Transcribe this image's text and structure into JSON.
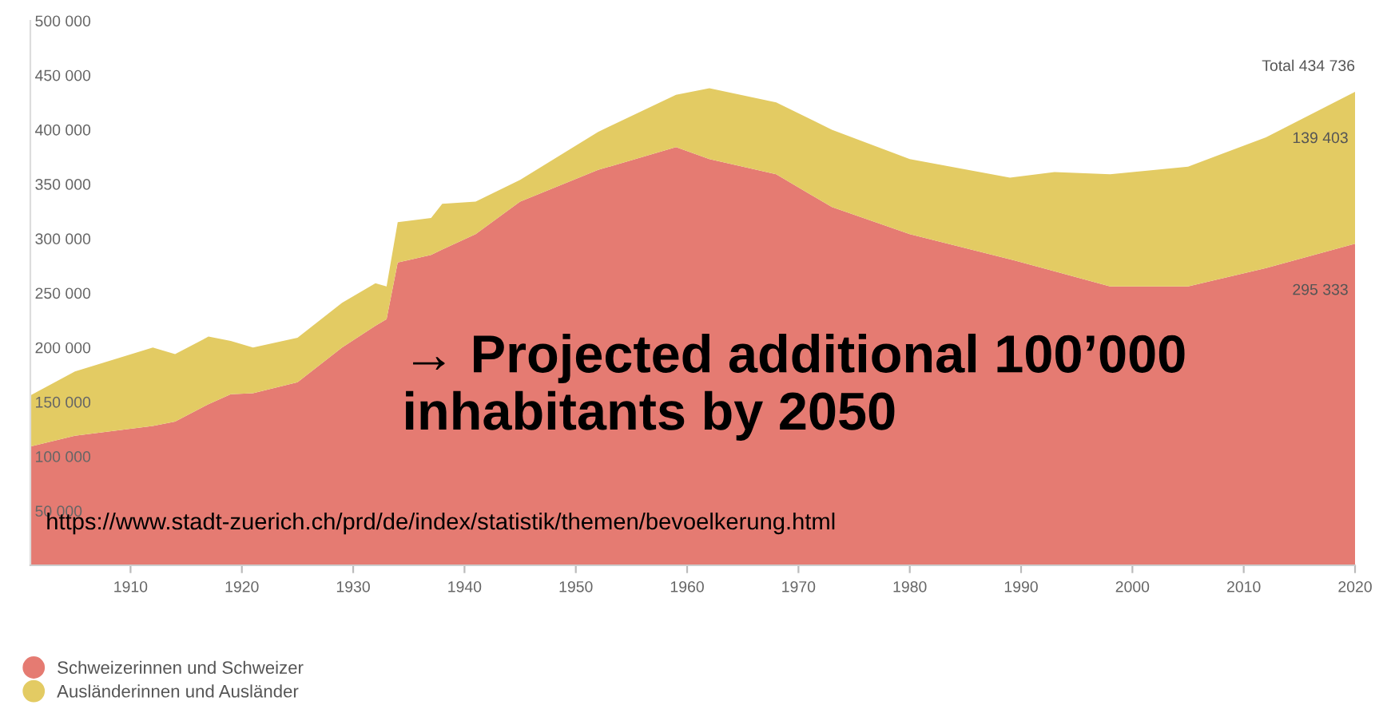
{
  "chart_data": {
    "type": "area",
    "stacked": true,
    "x": [
      1901,
      1905,
      1912,
      1914,
      1917,
      1919,
      1921,
      1925,
      1929,
      1932,
      1933,
      1934,
      1937,
      1938,
      1941,
      1945,
      1952,
      1959,
      1962,
      1968,
      1973,
      1980,
      1989,
      1993,
      1998,
      2005,
      2012,
      2020
    ],
    "series": [
      {
        "name": "Schweizerinnen und Schweizer",
        "color": "#e57b72",
        "values": [
          109000,
          119000,
          128000,
          132000,
          148000,
          157000,
          158000,
          168000,
          200000,
          220000,
          226000,
          278000,
          285000,
          290000,
          304000,
          334000,
          363000,
          384000,
          373000,
          359000,
          329000,
          304000,
          281000,
          270000,
          256000,
          256000,
          273000,
          295333
        ],
        "value_labels": [
          null,
          null,
          null,
          null,
          null,
          null,
          null,
          null,
          null,
          null,
          null,
          null,
          null,
          null,
          null,
          null,
          null,
          null,
          null,
          null,
          null,
          null,
          null,
          null,
          null,
          null,
          null,
          "295 333"
        ]
      },
      {
        "name": "Ausländerinnen und Ausländer",
        "color": "#e3cb63",
        "values": [
          47000,
          59000,
          72000,
          62000,
          62000,
          49000,
          42000,
          41000,
          41000,
          39000,
          30000,
          37000,
          34000,
          42000,
          30000,
          20000,
          35000,
          48000,
          65000,
          66000,
          71000,
          69000,
          75000,
          91000,
          103000,
          110000,
          120000,
          139403
        ],
        "value_labels": [
          null,
          null,
          null,
          null,
          null,
          null,
          null,
          null,
          null,
          null,
          null,
          null,
          null,
          null,
          null,
          null,
          null,
          null,
          null,
          null,
          null,
          null,
          null,
          null,
          null,
          null,
          null,
          "139 403"
        ]
      }
    ],
    "xlim": [
      1901,
      2020
    ],
    "xticks": [
      1910,
      1920,
      1930,
      1940,
      1950,
      1960,
      1970,
      1980,
      1990,
      2000,
      2010,
      2020
    ],
    "ylim": [
      0,
      500000
    ],
    "yticks": [
      {
        "value": 0,
        "label": null
      },
      {
        "value": 50000,
        "label": "50 000"
      },
      {
        "value": 100000,
        "label": "100 000"
      },
      {
        "value": 150000,
        "label": "150 000"
      },
      {
        "value": 200000,
        "label": "200 000"
      },
      {
        "value": 250000,
        "label": "250 000"
      },
      {
        "value": 300000,
        "label": "300 000"
      },
      {
        "value": 350000,
        "label": "350 000"
      },
      {
        "value": 400000,
        "label": "400 000"
      },
      {
        "value": 450000,
        "label": "450 000"
      },
      {
        "value": 500000,
        "label": "500 000"
      }
    ],
    "grid": false,
    "legend": "bottom left",
    "annotations": [
      {
        "text": "Total 434 736",
        "x": 2020,
        "y": 434736
      },
      "→ Projected additional 100’000 inhabitants by 2050",
      "https://www.stadt-zuerich.ch/prd/de/index/statistik/themen/bevoelkerung.html"
    ]
  }
}
